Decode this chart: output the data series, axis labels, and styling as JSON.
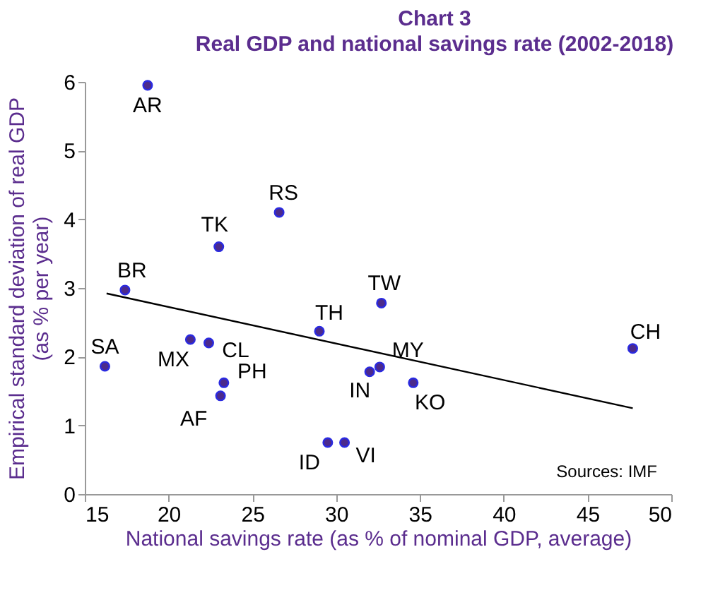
{
  "chart_data": {
    "type": "scatter",
    "title": "Chart 3",
    "subtitle": "Real GDP and national savings rate (2002-2018)",
    "xlabel": "National savings rate (as % of nominal GDP, average)",
    "ylabel": "Empirical standard deviation of real GDP\n(as % per year)",
    "series": [
      {
        "color": "#4b2a8c",
        "marker": "circle",
        "x": [
          18.75,
          26.6,
          23.0,
          17.4,
          16.2,
          21.3,
          22.4,
          23.3,
          23.1,
          29.0,
          32.7,
          32.0,
          32.6,
          34.6,
          29.5,
          30.5,
          47.7
        ],
        "values": [
          5.95,
          4.1,
          3.6,
          2.97,
          1.86,
          2.25,
          2.2,
          1.62,
          1.43,
          2.37,
          2.78,
          1.78,
          1.85,
          1.62,
          0.75,
          0.75,
          2.12
        ]
      },
      {
        "type": "line",
        "color": "#000000",
        "marker": "none",
        "x": [
          16.3,
          47.7
        ],
        "values": [
          2.92,
          1.25
        ]
      }
    ],
    "annotations": [
      {
        "text": "AR",
        "x": 18.75,
        "y": 5.95
      },
      {
        "text": "RS",
        "x": 26.6,
        "y": 4.1
      },
      {
        "text": "TK",
        "x": 23.0,
        "y": 3.6
      },
      {
        "text": "BR",
        "x": 17.4,
        "y": 2.97
      },
      {
        "text": "SA",
        "x": 16.2,
        "y": 1.86
      },
      {
        "text": "MX",
        "x": 21.3,
        "y": 2.25
      },
      {
        "text": "CL",
        "x": 22.4,
        "y": 2.2
      },
      {
        "text": "PH",
        "x": 23.3,
        "y": 1.62
      },
      {
        "text": "AF",
        "x": 23.1,
        "y": 1.43
      },
      {
        "text": "TH",
        "x": 29.0,
        "y": 2.37
      },
      {
        "text": "TW",
        "x": 32.7,
        "y": 2.78
      },
      {
        "text": "IN",
        "x": 32.0,
        "y": 1.78
      },
      {
        "text": "MY",
        "x": 32.6,
        "y": 1.85
      },
      {
        "text": "KO",
        "x": 34.6,
        "y": 1.62
      },
      {
        "text": "ID",
        "x": 29.5,
        "y": 0.75
      },
      {
        "text": "VI",
        "x": 30.5,
        "y": 0.75
      },
      {
        "text": "CH",
        "x": 47.7,
        "y": 2.12
      },
      "Sources: IMF"
    ],
    "xlim": [
      15,
      50
    ],
    "xticks": [
      15,
      20,
      25,
      30,
      35,
      40,
      45,
      50
    ],
    "ylim": [
      0,
      6
    ],
    "yticks": [
      0,
      1,
      2,
      3,
      4,
      5,
      6
    ],
    "grid": false
  }
}
